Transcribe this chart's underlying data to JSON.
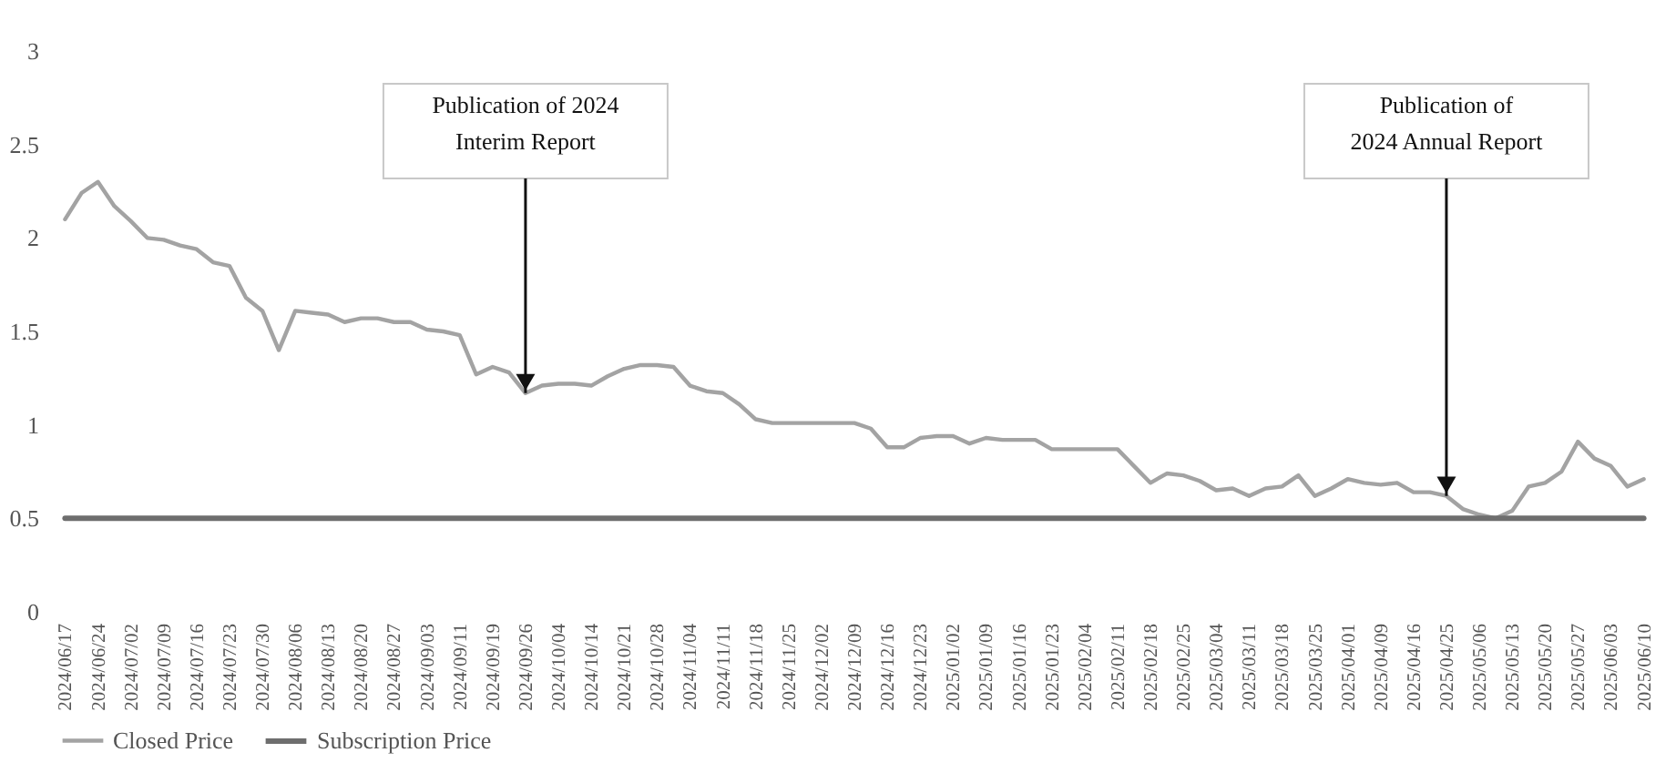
{
  "chart_data": {
    "type": "line",
    "categories": [
      "2024/06/17",
      null,
      "2024/06/24",
      null,
      "2024/07/02",
      null,
      "2024/07/09",
      null,
      "2024/07/16",
      null,
      "2024/07/23",
      null,
      "2024/07/30",
      null,
      "2024/08/06",
      null,
      "2024/08/13",
      null,
      "2024/08/20",
      null,
      "2024/08/27",
      null,
      "2024/09/03",
      null,
      "2024/09/11",
      null,
      "2024/09/19",
      null,
      "2024/09/26",
      null,
      "2024/10/04",
      null,
      "2024/10/14",
      null,
      "2024/10/21",
      null,
      "2024/10/28",
      null,
      "2024/11/04",
      null,
      "2024/11/11",
      null,
      "2024/11/18",
      null,
      "2024/11/25",
      null,
      "2024/12/02",
      null,
      "2024/12/09",
      null,
      "2024/12/16",
      null,
      "2024/12/23",
      null,
      "2025/01/02",
      null,
      "2025/01/09",
      null,
      "2025/01/16",
      null,
      "2025/01/23",
      null,
      "2025/02/04",
      null,
      "2025/02/11",
      null,
      "2025/02/18",
      null,
      "2025/02/25",
      null,
      "2025/03/04",
      null,
      "2025/03/11",
      null,
      "2025/03/18",
      null,
      "2025/03/25",
      null,
      "2025/04/01",
      null,
      "2025/04/09",
      null,
      "2025/04/16",
      null,
      "2025/04/25",
      null,
      "2025/05/06",
      null,
      "2025/05/13",
      null,
      "2025/05/20",
      null,
      "2025/05/27",
      null,
      "2025/06/03",
      null,
      "2025/06/10"
    ],
    "series": [
      {
        "name": "Closed Price",
        "color": "#a3a3a3",
        "values": [
          2.1,
          2.24,
          2.3,
          2.17,
          2.09,
          2.0,
          1.99,
          1.96,
          1.94,
          1.87,
          1.85,
          1.68,
          1.61,
          1.4,
          1.61,
          1.6,
          1.59,
          1.55,
          1.57,
          1.57,
          1.55,
          1.55,
          1.51,
          1.5,
          1.48,
          1.27,
          1.31,
          1.28,
          1.17,
          1.21,
          1.22,
          1.22,
          1.21,
          1.26,
          1.3,
          1.32,
          1.32,
          1.31,
          1.21,
          1.18,
          1.17,
          1.11,
          1.03,
          1.01,
          1.01,
          1.01,
          1.01,
          1.01,
          1.01,
          0.98,
          0.88,
          0.88,
          0.93,
          0.94,
          0.94,
          0.9,
          0.93,
          0.92,
          0.92,
          0.92,
          0.87,
          0.87,
          0.87,
          0.87,
          0.87,
          0.78,
          0.69,
          0.74,
          0.73,
          0.7,
          0.65,
          0.66,
          0.62,
          0.66,
          0.67,
          0.73,
          0.62,
          0.66,
          0.71,
          0.69,
          0.68,
          0.69,
          0.64,
          0.64,
          0.62,
          0.55,
          0.52,
          0.5,
          0.54,
          0.67,
          0.69,
          0.75,
          0.91,
          0.82,
          0.78,
          0.67,
          0.71
        ]
      },
      {
        "name": "Subscription Price",
        "color": "#6e6e6e",
        "values": [
          0.5,
          0.5,
          0.5,
          0.5,
          0.5,
          0.5,
          0.5,
          0.5,
          0.5,
          0.5,
          0.5,
          0.5,
          0.5,
          0.5,
          0.5,
          0.5,
          0.5,
          0.5,
          0.5,
          0.5,
          0.5,
          0.5,
          0.5,
          0.5,
          0.5,
          0.5,
          0.5,
          0.5,
          0.5,
          0.5,
          0.5,
          0.5,
          0.5,
          0.5,
          0.5,
          0.5,
          0.5,
          0.5,
          0.5,
          0.5,
          0.5,
          0.5,
          0.5,
          0.5,
          0.5,
          0.5,
          0.5,
          0.5,
          0.5,
          0.5,
          0.5,
          0.5,
          0.5,
          0.5,
          0.5,
          0.5,
          0.5,
          0.5,
          0.5,
          0.5,
          0.5,
          0.5,
          0.5,
          0.5,
          0.5,
          0.5,
          0.5,
          0.5,
          0.5,
          0.5,
          0.5,
          0.5,
          0.5,
          0.5,
          0.5,
          0.5,
          0.5,
          0.5,
          0.5,
          0.5,
          0.5,
          0.5,
          0.5,
          0.5,
          0.5,
          0.5,
          0.5,
          0.5,
          0.5,
          0.5,
          0.5,
          0.5,
          0.5,
          0.5,
          0.5,
          0.5,
          0.5
        ]
      }
    ],
    "ylim": [
      0,
      3
    ],
    "yticks": [
      0,
      0.5,
      1,
      1.5,
      2,
      2.5,
      3
    ],
    "legend": "bottom",
    "annotations": [
      {
        "text": "Publication of 2024\nInterim Report",
        "x": "2024/09/26",
        "y": 1.17
      },
      {
        "text": "Publication of\n2024 Annual Report",
        "x": "2025/04/25",
        "y": 0.62
      }
    ]
  }
}
